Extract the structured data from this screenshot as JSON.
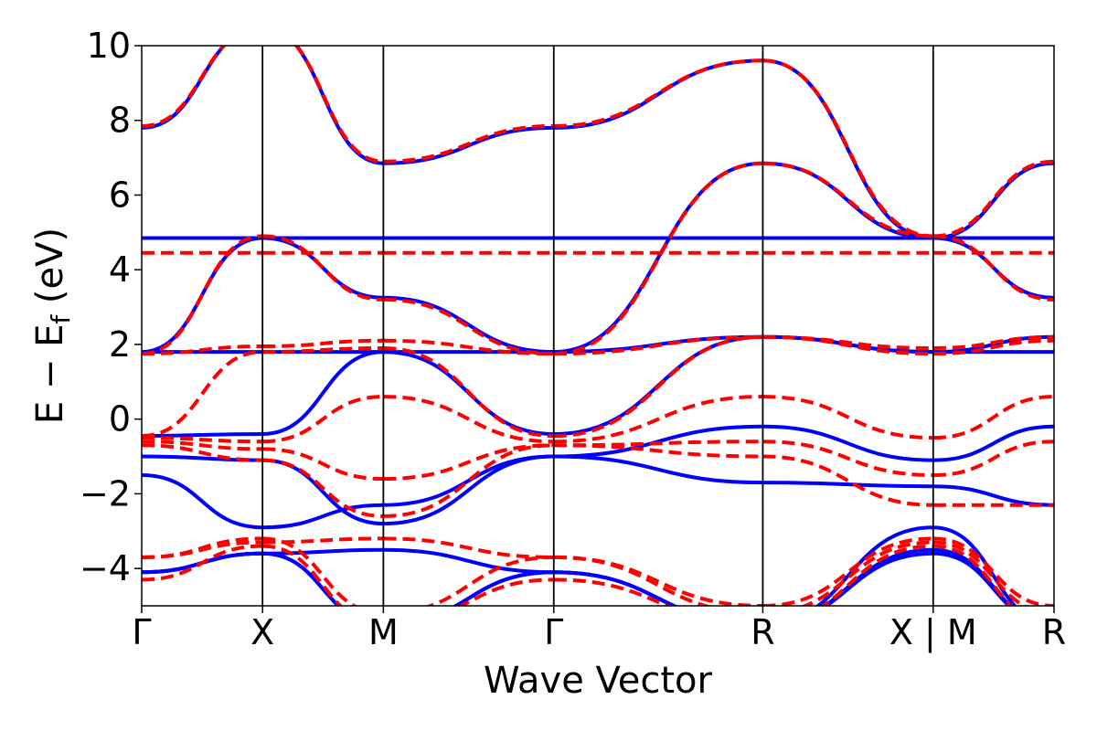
{
  "chart_data": {
    "type": "line",
    "title": "",
    "xlabel": "Wave Vector",
    "ylabel": {
      "prefix": "E − E",
      "subscript": "f",
      "suffix": " (eV)"
    },
    "ylim": [
      -5,
      10
    ],
    "yticks": [
      -4,
      -2,
      0,
      2,
      4,
      6,
      8,
      10
    ],
    "ytick_labels": [
      "−4",
      "−2",
      "0",
      "2",
      "4",
      "6",
      "8",
      "10"
    ],
    "kpath": {
      "positions": [
        0,
        1,
        2,
        3.41,
        5.14,
        6.55,
        7.55
      ],
      "labels": [
        "Γ",
        "X",
        "M",
        "Γ",
        "R",
        "X | M",
        "R"
      ],
      "segments": [
        [
          0,
          1
        ],
        [
          1,
          2
        ],
        [
          2,
          3.41
        ],
        [
          3.41,
          5.14
        ],
        [
          5.14,
          6.55
        ],
        [
          6.55,
          7.55
        ]
      ]
    },
    "xlim": [
      0,
      7.55
    ],
    "grid": false,
    "legend": "none",
    "series": [
      {
        "style": "solid",
        "color": "#0000ff",
        "bands": [
          [
            [
              -1.5,
              -2.9,
              -2.3,
              -1.0,
              -1.7,
              -1.8,
              -2.3,
              -0.2
            ]
          ],
          [
            [
              -1.0,
              -1.1,
              -2.8,
              -1.0,
              -0.2,
              -1.1,
              -0.2,
              -0.2
            ]
          ],
          [
            [
              -0.45,
              -0.4,
              1.8,
              -0.4,
              2.2,
              1.8,
              1.8,
              2.2
            ]
          ],
          [
            [
              1.8,
              1.8,
              1.8,
              1.8,
              2.2,
              1.8,
              2.2,
              2.2
            ]
          ],
          [
            [
              1.8,
              4.85,
              3.25,
              1.8,
              6.85,
              4.85,
              3.25,
              6.85
            ]
          ],
          [
            [
              4.85,
              4.85,
              4.85,
              4.85,
              4.85,
              4.85,
              4.85,
              4.85
            ]
          ],
          [
            [
              7.8,
              10.5,
              6.85,
              7.8,
              9.6,
              4.85,
              6.85,
              6.85
            ]
          ],
          [
            [
              -4.1,
              -3.6,
              -3.5,
              -4.1,
              -5.5,
              -3.5,
              -5.5,
              -5.5
            ]
          ],
          [
            [
              -4.1,
              -3.6,
              -5.5,
              -4.1,
              -5.5,
              -2.9,
              -5.5,
              -5.5
            ]
          ],
          [
            [
              -4.1,
              -3.6,
              -5.5,
              -4.1,
              -5.5,
              -3.6,
              -5.5,
              -5.5
            ]
          ]
        ]
      },
      {
        "style": "dashed",
        "color": "#ff0000",
        "bands": [
          [
            [
              -0.7,
              -1.1,
              -2.6,
              -0.7,
              -1.0,
              -2.3,
              -2.3,
              -0.2
            ]
          ],
          [
            [
              -0.6,
              -0.8,
              -1.6,
              -0.7,
              -0.6,
              -1.5,
              -0.6,
              -0.6
            ]
          ],
          [
            [
              -0.5,
              -0.6,
              0.6,
              -0.6,
              0.6,
              -0.5,
              0.6,
              0.6
            ]
          ],
          [
            [
              -0.45,
              1.8,
              1.9,
              -0.45,
              2.2,
              1.9,
              2.2,
              2.2
            ]
          ],
          [
            [
              1.75,
              1.95,
              2.1,
              1.75,
              2.2,
              1.75,
              2.1,
              2.2
            ]
          ],
          [
            [
              1.75,
              4.9,
              3.2,
              1.75,
              6.85,
              4.9,
              3.2,
              6.85
            ]
          ],
          [
            [
              4.45,
              4.45,
              4.45,
              4.45,
              4.45,
              4.45,
              4.45,
              4.45
            ]
          ],
          [
            [
              7.85,
              10.5,
              6.9,
              7.85,
              9.6,
              4.9,
              6.9,
              6.9
            ]
          ],
          [
            [
              -3.7,
              -3.3,
              -3.2,
              -3.7,
              -5.0,
              -3.2,
              -5.0,
              -5.0
            ]
          ],
          [
            [
              -3.7,
              -3.2,
              -5.2,
              -3.7,
              -5.2,
              -3.3,
              -5.2,
              -5.2
            ]
          ],
          [
            [
              -4.3,
              -3.4,
              -5.5,
              -4.3,
              -5.5,
              -3.4,
              -5.5,
              -5.5
            ]
          ]
        ]
      }
    ]
  }
}
